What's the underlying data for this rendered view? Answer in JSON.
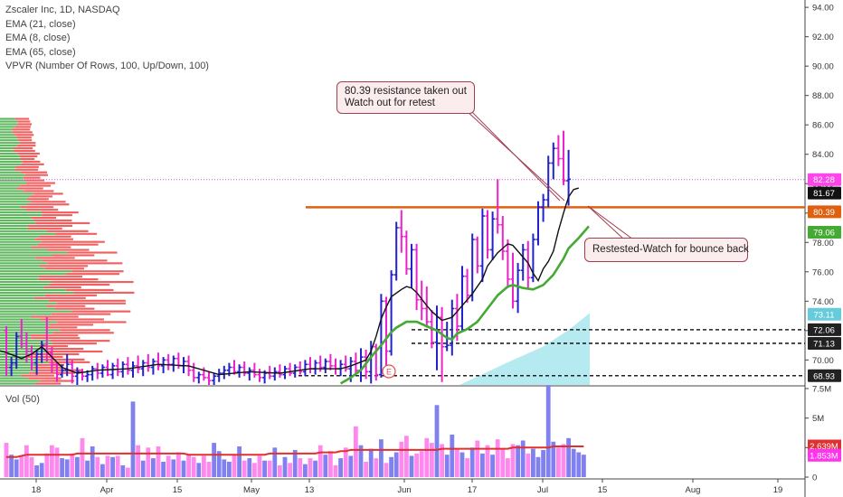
{
  "legend": {
    "title": "Zscaler Inc, 1D, NASDAQ",
    "ema21": "EMA (21, close)",
    "ema8": "EMA (8, close)",
    "ema65": "EMA (65, close)",
    "vpvr": "VPVR (Number Of Rows, 100, Up/Down, 100)"
  },
  "volume_title": "Vol (50)",
  "callouts": {
    "resistance_line1": "80.39 resistance  taken out",
    "resistance_line2": "Watch out for retest",
    "retest": "Restested-Watch for bounce back"
  },
  "earnings_marker": "E",
  "colors": {
    "up_bar": "#2222cc",
    "down_bar": "#ee22cc",
    "ema8": "#111111",
    "ema21": "#44aa33",
    "resistance": "#e06010",
    "vpvr_up": "#44aa44",
    "vpvr_down": "#ee4444",
    "vol_up": "#8080ee",
    "vol_down": "#ff88ee",
    "vol_ma": "#e03030",
    "volume_profile_area": "#a8e6ee"
  },
  "chart_data": {
    "type": "ohlc",
    "symbol": "Zscaler Inc",
    "interval": "1D",
    "exchange": "NASDAQ",
    "x_ticks": [
      "18",
      "Apr",
      "15",
      "May",
      "13",
      "Jun",
      "17",
      "Jul",
      "15",
      "Aug",
      "19"
    ],
    "y_ticks": [
      "70.00",
      "72.00",
      "74.00",
      "76.00",
      "78.00",
      "80.00",
      "82.00",
      "84.00",
      "86.00",
      "88.00",
      "90.00",
      "92.00",
      "94.00"
    ],
    "ylim": [
      68.3,
      94.5
    ],
    "price_labels": [
      {
        "value": "82.28",
        "color": "#ff44ee"
      },
      {
        "value": "81.67",
        "color": "#111111"
      },
      {
        "value": "80.39",
        "color": "#e06010"
      },
      {
        "value": "79.06",
        "color": "#44aa33"
      },
      {
        "value": "73.11",
        "color": "#66ccdd"
      },
      {
        "value": "72.06",
        "color": "#222222"
      },
      {
        "value": "71.13",
        "color": "#222222"
      },
      {
        "value": "68.93",
        "color": "#222222"
      }
    ],
    "resistance_level": 80.39,
    "support_levels": [
      72.06,
      71.13,
      68.93
    ],
    "bars": [
      {
        "o": 72.0,
        "h": 72.3,
        "l": 68.9,
        "c": 69.5
      },
      {
        "o": 69.5,
        "h": 70.2,
        "l": 68.9,
        "c": 69.8
      },
      {
        "o": 69.8,
        "h": 71.9,
        "l": 69.4,
        "c": 71.6
      },
      {
        "o": 71.6,
        "h": 72.8,
        "l": 70.8,
        "c": 71.1
      },
      {
        "o": 71.1,
        "h": 71.9,
        "l": 69.8,
        "c": 70.6
      },
      {
        "o": 70.6,
        "h": 71.0,
        "l": 69.3,
        "c": 69.8
      },
      {
        "o": 69.8,
        "h": 70.7,
        "l": 69.0,
        "c": 70.4
      },
      {
        "o": 70.4,
        "h": 71.3,
        "l": 69.8,
        "c": 71.0
      },
      {
        "o": 71.0,
        "h": 72.9,
        "l": 69.9,
        "c": 70.5
      },
      {
        "o": 70.5,
        "h": 70.9,
        "l": 69.1,
        "c": 69.7
      },
      {
        "o": 69.7,
        "h": 69.9,
        "l": 68.5,
        "c": 69.0
      },
      {
        "o": 69.0,
        "h": 69.7,
        "l": 68.8,
        "c": 69.3
      },
      {
        "o": 69.3,
        "h": 70.4,
        "l": 68.9,
        "c": 69.7
      },
      {
        "o": 69.7,
        "h": 70.0,
        "l": 68.4,
        "c": 68.9
      },
      {
        "o": 68.9,
        "h": 69.5,
        "l": 68.3,
        "c": 69.2
      },
      {
        "o": 69.2,
        "h": 69.4,
        "l": 68.6,
        "c": 68.9
      },
      {
        "o": 68.9,
        "h": 69.3,
        "l": 68.5,
        "c": 69.0
      },
      {
        "o": 69.0,
        "h": 69.6,
        "l": 68.6,
        "c": 69.4
      },
      {
        "o": 69.4,
        "h": 69.8,
        "l": 68.7,
        "c": 69.1
      },
      {
        "o": 69.1,
        "h": 69.7,
        "l": 68.8,
        "c": 69.5
      },
      {
        "o": 69.5,
        "h": 70.0,
        "l": 68.9,
        "c": 69.0
      },
      {
        "o": 69.0,
        "h": 69.8,
        "l": 68.7,
        "c": 69.6
      },
      {
        "o": 69.6,
        "h": 70.1,
        "l": 68.9,
        "c": 69.2
      },
      {
        "o": 69.2,
        "h": 69.9,
        "l": 68.8,
        "c": 69.7
      },
      {
        "o": 69.7,
        "h": 70.2,
        "l": 69.0,
        "c": 69.3
      },
      {
        "o": 69.3,
        "h": 69.9,
        "l": 68.8,
        "c": 69.6
      },
      {
        "o": 69.6,
        "h": 70.3,
        "l": 69.1,
        "c": 69.4
      },
      {
        "o": 69.4,
        "h": 70.0,
        "l": 68.9,
        "c": 69.8
      },
      {
        "o": 69.8,
        "h": 70.4,
        "l": 69.2,
        "c": 69.5
      },
      {
        "o": 69.5,
        "h": 70.1,
        "l": 69.0,
        "c": 69.9
      },
      {
        "o": 69.9,
        "h": 70.5,
        "l": 69.3,
        "c": 69.6
      },
      {
        "o": 69.6,
        "h": 70.2,
        "l": 69.1,
        "c": 70.0
      },
      {
        "o": 70.0,
        "h": 70.4,
        "l": 69.3,
        "c": 69.7
      },
      {
        "o": 69.7,
        "h": 70.3,
        "l": 69.2,
        "c": 70.1
      },
      {
        "o": 70.1,
        "h": 70.5,
        "l": 69.4,
        "c": 69.6
      },
      {
        "o": 69.6,
        "h": 70.2,
        "l": 69.1,
        "c": 69.9
      },
      {
        "o": 69.9,
        "h": 70.3,
        "l": 68.9,
        "c": 69.3
      },
      {
        "o": 69.3,
        "h": 69.8,
        "l": 68.5,
        "c": 68.8
      },
      {
        "o": 68.8,
        "h": 69.2,
        "l": 68.4,
        "c": 69.0
      },
      {
        "o": 69.0,
        "h": 69.5,
        "l": 68.6,
        "c": 68.8
      },
      {
        "o": 68.8,
        "h": 69.2,
        "l": 68.3,
        "c": 68.6
      },
      {
        "o": 68.6,
        "h": 69.1,
        "l": 68.3,
        "c": 68.9
      },
      {
        "o": 68.9,
        "h": 69.4,
        "l": 68.5,
        "c": 69.1
      },
      {
        "o": 69.1,
        "h": 69.6,
        "l": 68.7,
        "c": 69.3
      },
      {
        "o": 69.3,
        "h": 69.8,
        "l": 68.9,
        "c": 69.5
      },
      {
        "o": 69.5,
        "h": 70.0,
        "l": 69.0,
        "c": 69.2
      },
      {
        "o": 69.2,
        "h": 69.7,
        "l": 68.8,
        "c": 69.5
      },
      {
        "o": 69.5,
        "h": 69.9,
        "l": 68.9,
        "c": 69.1
      },
      {
        "o": 69.1,
        "h": 69.5,
        "l": 68.6,
        "c": 69.3
      },
      {
        "o": 69.3,
        "h": 69.8,
        "l": 68.8,
        "c": 69.0
      },
      {
        "o": 69.0,
        "h": 69.4,
        "l": 68.5,
        "c": 68.8
      },
      {
        "o": 68.8,
        "h": 69.3,
        "l": 68.4,
        "c": 69.1
      },
      {
        "o": 69.1,
        "h": 69.6,
        "l": 68.7,
        "c": 68.9
      },
      {
        "o": 68.9,
        "h": 69.5,
        "l": 68.6,
        "c": 69.2
      },
      {
        "o": 69.2,
        "h": 69.7,
        "l": 68.8,
        "c": 69.0
      },
      {
        "o": 69.0,
        "h": 69.6,
        "l": 68.7,
        "c": 69.4
      },
      {
        "o": 69.4,
        "h": 69.8,
        "l": 68.9,
        "c": 69.1
      },
      {
        "o": 69.1,
        "h": 69.7,
        "l": 68.8,
        "c": 69.5
      },
      {
        "o": 69.5,
        "h": 69.9,
        "l": 69.0,
        "c": 69.2
      },
      {
        "o": 69.2,
        "h": 70.0,
        "l": 68.9,
        "c": 69.7
      },
      {
        "o": 69.7,
        "h": 70.2,
        "l": 69.1,
        "c": 69.4
      },
      {
        "o": 69.4,
        "h": 70.0,
        "l": 69.0,
        "c": 69.8
      },
      {
        "o": 69.8,
        "h": 70.3,
        "l": 69.2,
        "c": 69.5
      },
      {
        "o": 69.5,
        "h": 70.1,
        "l": 69.1,
        "c": 69.9
      },
      {
        "o": 69.9,
        "h": 70.4,
        "l": 69.3,
        "c": 69.6
      },
      {
        "o": 69.6,
        "h": 70.1,
        "l": 69.0,
        "c": 69.4
      },
      {
        "o": 69.4,
        "h": 70.0,
        "l": 68.9,
        "c": 69.7
      },
      {
        "o": 69.7,
        "h": 70.3,
        "l": 69.2,
        "c": 69.4
      },
      {
        "o": 69.4,
        "h": 70.2,
        "l": 68.5,
        "c": 69.9
      },
      {
        "o": 69.9,
        "h": 70.5,
        "l": 69.0,
        "c": 69.3
      },
      {
        "o": 69.3,
        "h": 70.8,
        "l": 68.5,
        "c": 70.2
      },
      {
        "o": 70.2,
        "h": 70.7,
        "l": 68.7,
        "c": 69.2
      },
      {
        "o": 69.2,
        "h": 71.3,
        "l": 68.4,
        "c": 70.9
      },
      {
        "o": 70.9,
        "h": 71.1,
        "l": 68.6,
        "c": 69.0
      },
      {
        "o": 69.0,
        "h": 74.5,
        "l": 68.8,
        "c": 74.0
      },
      {
        "o": 74.0,
        "h": 74.3,
        "l": 69.6,
        "c": 70.6
      },
      {
        "o": 70.6,
        "h": 76.1,
        "l": 70.3,
        "c": 75.8
      },
      {
        "o": 75.8,
        "h": 79.4,
        "l": 75.4,
        "c": 79.0
      },
      {
        "o": 79.0,
        "h": 80.2,
        "l": 77.3,
        "c": 78.4
      },
      {
        "o": 78.4,
        "h": 78.8,
        "l": 75.8,
        "c": 76.2
      },
      {
        "o": 76.2,
        "h": 77.9,
        "l": 74.9,
        "c": 77.5
      },
      {
        "o": 77.5,
        "h": 77.9,
        "l": 73.4,
        "c": 74.1
      },
      {
        "o": 74.1,
        "h": 75.4,
        "l": 72.7,
        "c": 73.5
      },
      {
        "o": 73.5,
        "h": 75.0,
        "l": 72.2,
        "c": 72.6
      },
      {
        "o": 72.6,
        "h": 73.4,
        "l": 70.8,
        "c": 71.2
      },
      {
        "o": 71.2,
        "h": 73.7,
        "l": 69.3,
        "c": 72.9
      },
      {
        "o": 72.9,
        "h": 73.6,
        "l": 68.5,
        "c": 70.9
      },
      {
        "o": 70.9,
        "h": 72.6,
        "l": 70.6,
        "c": 71.0
      },
      {
        "o": 71.0,
        "h": 74.1,
        "l": 70.3,
        "c": 73.5
      },
      {
        "o": 73.5,
        "h": 74.5,
        "l": 71.3,
        "c": 72.3
      },
      {
        "o": 72.3,
        "h": 76.4,
        "l": 71.9,
        "c": 75.7
      },
      {
        "o": 75.7,
        "h": 76.2,
        "l": 73.9,
        "c": 74.4
      },
      {
        "o": 74.4,
        "h": 78.6,
        "l": 74.0,
        "c": 78.2
      },
      {
        "o": 78.2,
        "h": 78.4,
        "l": 75.9,
        "c": 76.4
      },
      {
        "o": 76.4,
        "h": 80.3,
        "l": 75.3,
        "c": 79.8
      },
      {
        "o": 79.8,
        "h": 80.2,
        "l": 76.9,
        "c": 77.5
      },
      {
        "o": 77.5,
        "h": 80.1,
        "l": 76.8,
        "c": 79.6
      },
      {
        "o": 79.6,
        "h": 82.3,
        "l": 78.6,
        "c": 79.2
      },
      {
        "o": 79.2,
        "h": 79.8,
        "l": 76.8,
        "c": 77.4
      },
      {
        "o": 77.4,
        "h": 78.2,
        "l": 74.9,
        "c": 75.5
      },
      {
        "o": 75.5,
        "h": 77.3,
        "l": 73.5,
        "c": 74.0
      },
      {
        "o": 74.0,
        "h": 76.6,
        "l": 73.2,
        "c": 76.1
      },
      {
        "o": 76.1,
        "h": 77.9,
        "l": 75.4,
        "c": 77.5
      },
      {
        "o": 77.5,
        "h": 78.1,
        "l": 74.9,
        "c": 75.6
      },
      {
        "o": 75.6,
        "h": 78.6,
        "l": 75.3,
        "c": 78.2
      },
      {
        "o": 78.2,
        "h": 80.8,
        "l": 77.8,
        "c": 80.4
      },
      {
        "o": 80.4,
        "h": 81.3,
        "l": 79.4,
        "c": 80.9
      },
      {
        "o": 80.9,
        "h": 83.9,
        "l": 80.4,
        "c": 83.4
      },
      {
        "o": 83.4,
        "h": 84.8,
        "l": 82.3,
        "c": 84.4
      },
      {
        "o": 84.4,
        "h": 85.3,
        "l": 83.2,
        "c": 83.7
      },
      {
        "o": 83.7,
        "h": 85.6,
        "l": 81.9,
        "c": 82.2
      },
      {
        "o": 82.2,
        "h": 84.3,
        "l": 80.5,
        "c": 82.3
      }
    ],
    "ema8": [
      [
        -3,
        70.8
      ],
      [
        0,
        70.5
      ],
      [
        3,
        70.1
      ],
      [
        5,
        70.4
      ],
      [
        7,
        70.9
      ],
      [
        9,
        70.2
      ],
      [
        11,
        69.5
      ],
      [
        14,
        69.1
      ],
      [
        18,
        69.3
      ],
      [
        24,
        69.4
      ],
      [
        30,
        69.7
      ],
      [
        36,
        69.6
      ],
      [
        42,
        69.0
      ],
      [
        48,
        69.2
      ],
      [
        54,
        69.1
      ],
      [
        60,
        69.4
      ],
      [
        66,
        69.4
      ],
      [
        68,
        69.6
      ],
      [
        71,
        70.0
      ],
      [
        72,
        70.6
      ],
      [
        73,
        71.6
      ],
      [
        74,
        72.8
      ],
      [
        75,
        73.6
      ],
      [
        76,
        74.3
      ],
      [
        78,
        74.8
      ],
      [
        79,
        75.0
      ],
      [
        80,
        74.9
      ],
      [
        81,
        74.6
      ],
      [
        83,
        73.7
      ],
      [
        84,
        73.3
      ],
      [
        86,
        72.7
      ],
      [
        88,
        72.9
      ],
      [
        90,
        73.7
      ],
      [
        92,
        74.5
      ],
      [
        94,
        75.5
      ],
      [
        95,
        76.4
      ],
      [
        97,
        77.3
      ],
      [
        99,
        77.9
      ],
      [
        100,
        77.8
      ],
      [
        101,
        77.4
      ],
      [
        103,
        76.6
      ],
      [
        104,
        75.9
      ],
      [
        105,
        75.4
      ],
      [
        106,
        76.2
      ],
      [
        107,
        76.7
      ],
      [
        108,
        77.4
      ],
      [
        109,
        78.8
      ],
      [
        110,
        80.0
      ],
      [
        111,
        81.1
      ],
      [
        112,
        81.6
      ],
      [
        113,
        81.7
      ]
    ],
    "ema21": [
      [
        66,
        68.4
      ],
      [
        68,
        68.8
      ],
      [
        70,
        69.3
      ],
      [
        72,
        70.2
      ],
      [
        74,
        71.0
      ],
      [
        76,
        71.9
      ],
      [
        77,
        72.2
      ],
      [
        79,
        72.6
      ],
      [
        81,
        72.6
      ],
      [
        83,
        72.3
      ],
      [
        85,
        72.0
      ],
      [
        87,
        71.5
      ],
      [
        88,
        71.4
      ],
      [
        89,
        71.8
      ],
      [
        91,
        72.1
      ],
      [
        93,
        72.6
      ],
      [
        95,
        73.5
      ],
      [
        97,
        74.4
      ],
      [
        99,
        75.0
      ],
      [
        100,
        75.1
      ],
      [
        102,
        74.9
      ],
      [
        104,
        74.8
      ],
      [
        106,
        75.1
      ],
      [
        108,
        75.8
      ],
      [
        110,
        76.9
      ],
      [
        111,
        77.6
      ],
      [
        113,
        78.3
      ],
      [
        114,
        78.7
      ],
      [
        115,
        79.1
      ]
    ],
    "volume": {
      "ylim": [
        0,
        7.5
      ],
      "y_ticks": [
        "0",
        "2.5M",
        "5M",
        "7.5M"
      ],
      "labels": [
        {
          "value": "2.639M",
          "color": "#e03030"
        },
        {
          "value": "1.853M",
          "color": "#ff33ee"
        }
      ],
      "values": [
        2.9,
        1.9,
        1.5,
        1.8,
        2.7,
        1.7,
        1.0,
        1.2,
        2.0,
        2.7,
        2.5,
        1.6,
        1.5,
        2.0,
        1.7,
        3.3,
        1.4,
        2.6,
        1.7,
        1.1,
        1.8,
        1.7,
        1.8,
        1.0,
        0.8,
        6.4,
        2.7,
        1.4,
        2.5,
        1.6,
        2.6,
        1.3,
        1.8,
        1.5,
        2.1,
        1.4,
        1.9,
        1.7,
        1.2,
        1.8,
        1.3,
        2.9,
        2.2,
        1.5,
        1.3,
        1.9,
        2.6,
        1.4,
        1.6,
        1.2,
        1.8,
        1.4,
        1.4,
        2.5,
        1.0,
        1.7,
        1.2,
        2.3,
        1.6,
        1.1,
        1.6,
        1.4,
        2.7,
        1.9,
        2.2,
        1.0,
        1.6,
        2.5,
        1.8,
        4.3,
        2.7,
        1.3,
        2.4,
        1.6,
        3.2,
        1.2,
        1.7,
        2.1,
        3.0,
        3.5,
        1.8,
        2.0,
        2.2,
        3.3,
        2.9,
        6.1,
        2.8,
        1.9,
        3.6,
        2.4,
        2.1,
        1.6,
        2.5,
        3.1,
        2.0,
        2.7,
        1.9,
        3.2,
        2.4,
        1.6,
        2.8,
        2.7,
        3.1,
        2.0,
        2.4,
        1.7,
        2.3,
        7.8,
        3.0,
        2.5,
        2.8,
        3.3,
        2.4,
        2.1,
        1.9
      ],
      "ma": [
        1.7,
        1.7,
        1.7,
        1.8,
        1.9,
        1.9,
        1.9,
        1.9,
        1.9,
        1.9,
        1.9,
        1.9,
        1.9,
        1.9,
        2.0,
        2.0,
        2.0,
        2.0,
        2.0,
        2.0,
        2.0,
        2.0,
        2.0,
        2.0,
        2.0,
        2.0,
        2.0,
        2.0,
        2.0,
        2.0,
        2.0,
        2.0,
        2.0,
        2.0,
        2.0,
        2.0,
        1.9,
        1.9,
        1.9,
        1.9,
        1.9,
        1.9,
        1.9,
        1.9,
        1.9,
        1.9,
        1.9,
        1.9,
        1.9,
        1.9,
        1.9,
        1.9,
        2.0,
        2.0,
        2.0,
        2.0,
        2.0,
        2.0,
        2.0,
        2.0,
        2.0,
        2.0,
        2.1,
        2.1,
        2.1,
        2.1,
        2.2,
        2.2,
        2.3,
        2.3,
        2.3,
        2.3,
        2.3,
        2.3,
        2.3,
        2.3,
        2.3,
        2.3,
        2.3,
        2.3,
        2.3,
        2.3,
        2.3,
        2.3,
        2.3,
        2.3,
        2.4,
        2.4,
        2.4,
        2.4,
        2.4,
        2.4,
        2.4,
        2.4,
        2.4,
        2.4,
        2.4,
        2.4,
        2.4,
        2.4,
        2.5,
        2.5,
        2.5,
        2.5,
        2.5,
        2.5,
        2.5,
        2.5,
        2.6,
        2.6,
        2.6,
        2.6,
        2.6,
        2.6,
        2.6
      ]
    }
  }
}
